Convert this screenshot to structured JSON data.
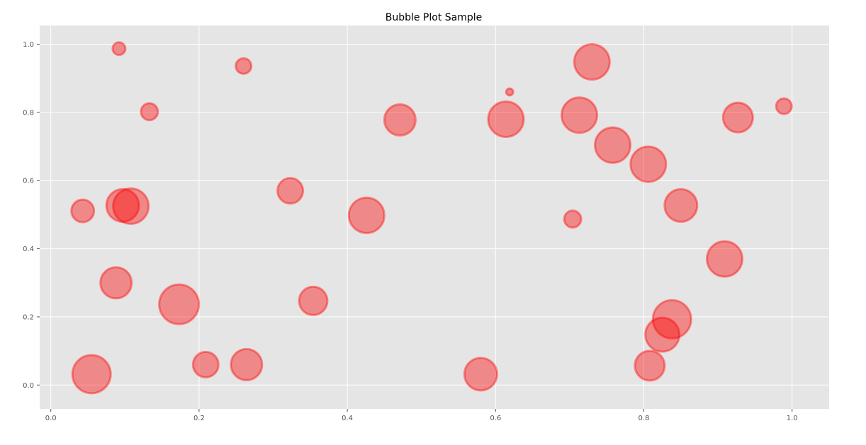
{
  "chart_data": {
    "type": "scatter",
    "title": "Bubble Plot Sample",
    "xlabel": "",
    "ylabel": "",
    "xlim": [
      -0.015,
      1.05
    ],
    "ylim": [
      -0.07,
      1.055
    ],
    "xticks": [
      0.0,
      0.2,
      0.4,
      0.6,
      0.8,
      1.0
    ],
    "xtick_labels": [
      "0.0",
      "0.2",
      "0.4",
      "0.6",
      "0.8",
      "1.0"
    ],
    "yticks": [
      0.0,
      0.2,
      0.4,
      0.6,
      0.8,
      1.0
    ],
    "ytick_labels": [
      "0.0",
      "0.2",
      "0.4",
      "0.6",
      "0.8",
      "1.0"
    ],
    "grid": true,
    "style": "ggplot",
    "colors": {
      "plot_background": "#E5E5E5",
      "bubble": "#FF0000",
      "grid": "#FFFFFF"
    },
    "points": [
      {
        "x": 0.092,
        "y": 0.987,
        "size": 9
      },
      {
        "x": 0.26,
        "y": 0.936,
        "size": 11
      },
      {
        "x": 0.133,
        "y": 0.802,
        "size": 12
      },
      {
        "x": 0.043,
        "y": 0.511,
        "size": 16
      },
      {
        "x": 0.097,
        "y": 0.527,
        "size": 23
      },
      {
        "x": 0.108,
        "y": 0.525,
        "size": 25
      },
      {
        "x": 0.088,
        "y": 0.3,
        "size": 22
      },
      {
        "x": 0.173,
        "y": 0.237,
        "size": 28
      },
      {
        "x": 0.055,
        "y": 0.032,
        "size": 27
      },
      {
        "x": 0.209,
        "y": 0.06,
        "size": 18
      },
      {
        "x": 0.264,
        "y": 0.06,
        "size": 22
      },
      {
        "x": 0.323,
        "y": 0.57,
        "size": 18
      },
      {
        "x": 0.354,
        "y": 0.247,
        "size": 20
      },
      {
        "x": 0.426,
        "y": 0.498,
        "size": 25
      },
      {
        "x": 0.471,
        "y": 0.778,
        "size": 22
      },
      {
        "x": 0.58,
        "y": 0.032,
        "size": 23
      },
      {
        "x": 0.614,
        "y": 0.78,
        "size": 25
      },
      {
        "x": 0.619,
        "y": 0.86,
        "size": 5
      },
      {
        "x": 0.704,
        "y": 0.487,
        "size": 12
      },
      {
        "x": 0.713,
        "y": 0.792,
        "size": 25
      },
      {
        "x": 0.73,
        "y": 0.948,
        "size": 25
      },
      {
        "x": 0.758,
        "y": 0.704,
        "size": 25
      },
      {
        "x": 0.806,
        "y": 0.648,
        "size": 25
      },
      {
        "x": 0.808,
        "y": 0.057,
        "size": 21
      },
      {
        "x": 0.825,
        "y": 0.148,
        "size": 24
      },
      {
        "x": 0.838,
        "y": 0.193,
        "size": 27
      },
      {
        "x": 0.85,
        "y": 0.527,
        "size": 23
      },
      {
        "x": 0.909,
        "y": 0.37,
        "size": 25
      },
      {
        "x": 0.927,
        "y": 0.785,
        "size": 21
      },
      {
        "x": 0.989,
        "y": 0.818,
        "size": 11
      }
    ]
  }
}
